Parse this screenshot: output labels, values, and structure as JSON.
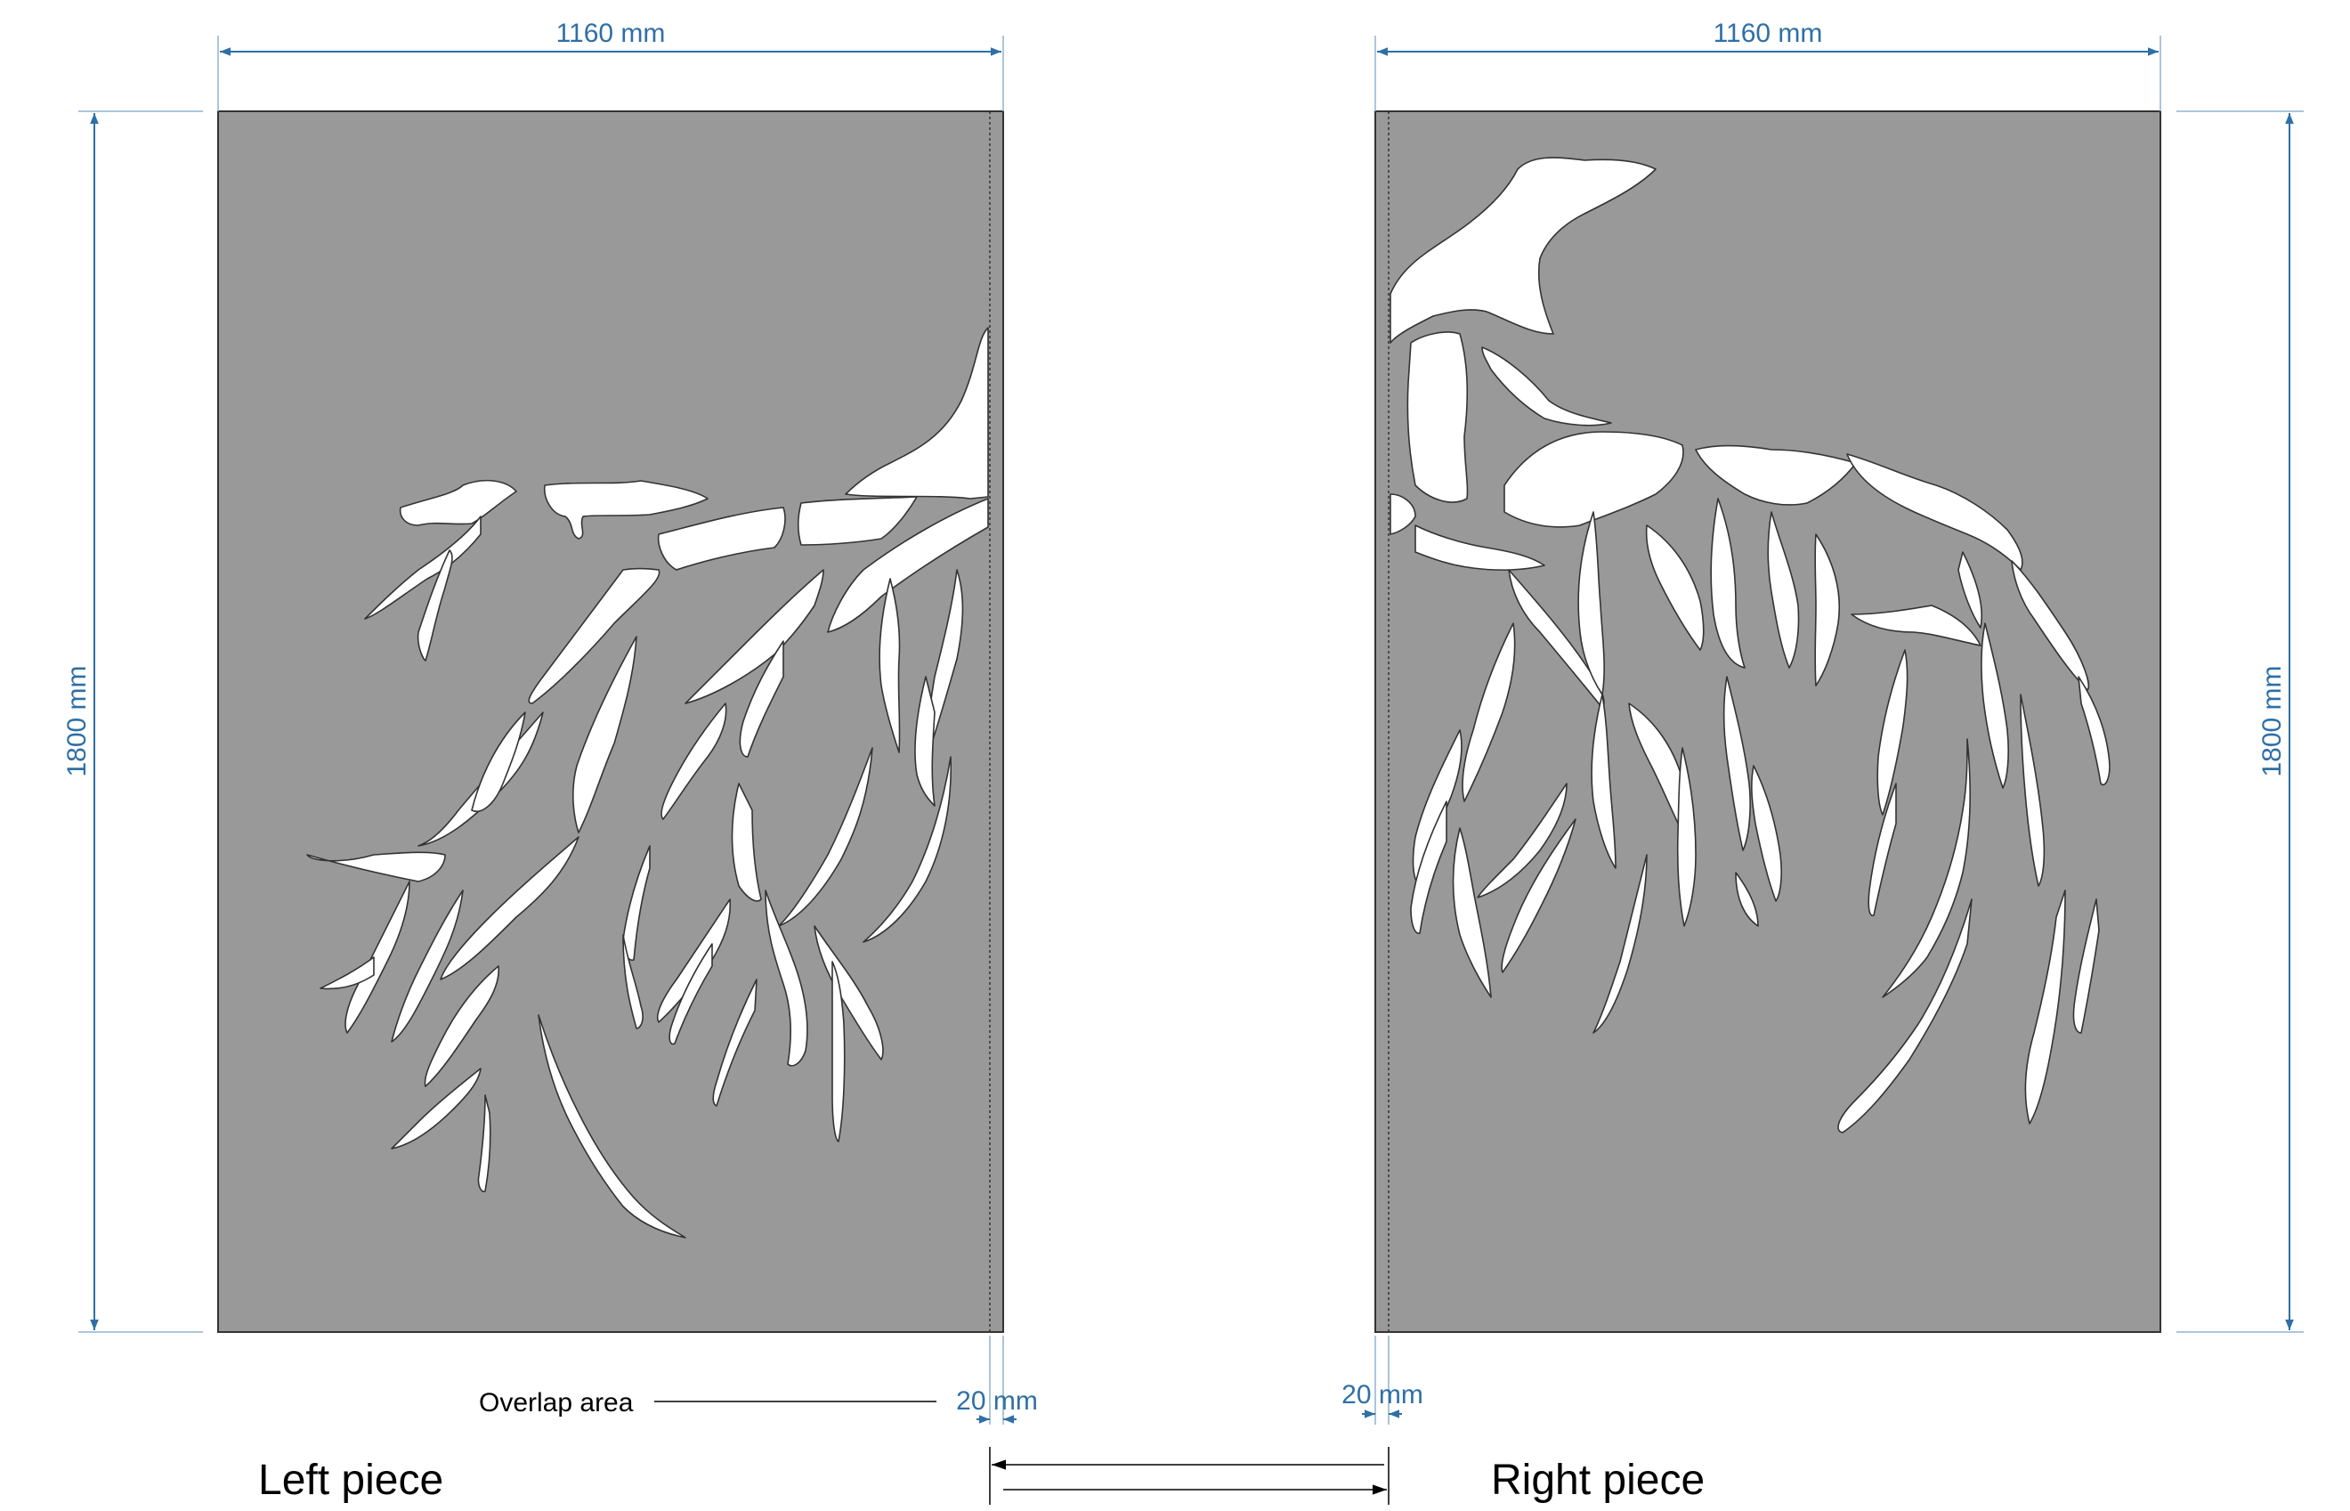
{
  "colors": {
    "dimension": "#2f6fa6",
    "panel": "#999999",
    "cutout": "#ffffff",
    "outline": "#333333"
  },
  "left_piece": {
    "label": "Left piece",
    "width_label": "1160 mm",
    "height_label": "1800 mm",
    "overlap_width_label": "20 mm",
    "overlap_callout": "Overlap area"
  },
  "right_piece": {
    "label": "Right piece",
    "width_label": "1160 mm",
    "height_label": "1800 mm",
    "overlap_width_label": "20 mm"
  }
}
